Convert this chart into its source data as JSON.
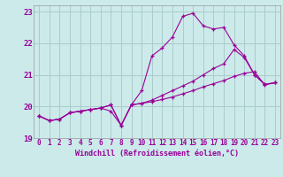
{
  "background_color": "#cceaea",
  "grid_color": "#aacccc",
  "line_color": "#990099",
  "marker": "+",
  "xlabel": "Windchill (Refroidissement éolien,°C)",
  "xlim": [
    -0.5,
    23.5
  ],
  "ylim": [
    19.0,
    23.2
  ],
  "yticks": [
    19,
    20,
    21,
    22,
    23
  ],
  "xticks": [
    0,
    1,
    2,
    3,
    4,
    5,
    6,
    7,
    8,
    9,
    10,
    11,
    12,
    13,
    14,
    15,
    16,
    17,
    18,
    19,
    20,
    21,
    22,
    23
  ],
  "series": [
    {
      "x": [
        0,
        1,
        2,
        3,
        4,
        5,
        6,
        7,
        8,
        9,
        10,
        11,
        12,
        13,
        14,
        15,
        16,
        17,
        18,
        19,
        20,
        21,
        22,
        23
      ],
      "y": [
        19.7,
        19.55,
        19.6,
        19.8,
        19.85,
        19.9,
        19.95,
        19.85,
        19.4,
        20.05,
        20.5,
        21.6,
        21.85,
        22.2,
        22.85,
        22.95,
        22.55,
        22.45,
        22.5,
        21.95,
        21.6,
        21.0,
        20.7,
        20.75
      ]
    },
    {
      "x": [
        0,
        1,
        2,
        3,
        4,
        5,
        6,
        7,
        8,
        9,
        10,
        11,
        12,
        13,
        14,
        15,
        16,
        17,
        18,
        19,
        20,
        21,
        22,
        23
      ],
      "y": [
        19.7,
        19.55,
        19.6,
        19.8,
        19.85,
        19.9,
        19.95,
        20.05,
        19.4,
        20.05,
        20.1,
        20.2,
        20.35,
        20.5,
        20.65,
        20.8,
        21.0,
        21.2,
        21.35,
        21.8,
        21.55,
        21.0,
        20.7,
        20.75
      ]
    },
    {
      "x": [
        0,
        1,
        2,
        3,
        4,
        5,
        6,
        7,
        8,
        9,
        10,
        11,
        12,
        13,
        14,
        15,
        16,
        17,
        18,
        19,
        20,
        21,
        22,
        23
      ],
      "y": [
        19.7,
        19.55,
        19.6,
        19.8,
        19.85,
        19.9,
        19.95,
        20.05,
        19.4,
        20.05,
        20.1,
        20.15,
        20.22,
        20.3,
        20.4,
        20.5,
        20.62,
        20.72,
        20.82,
        20.95,
        21.05,
        21.1,
        20.68,
        20.75
      ]
    }
  ]
}
